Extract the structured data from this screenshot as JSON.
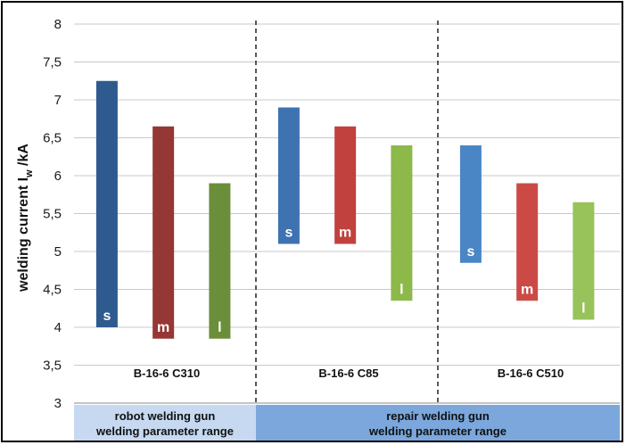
{
  "chart_data": {
    "type": "bar",
    "subtype": "floating-range",
    "ylabel_main": "welding current I",
    "ylabel_sub": "w",
    "ylabel_unit": " /kA",
    "ylim": [
      3,
      8
    ],
    "yticks": [
      "3",
      "3,5",
      "4",
      "4,5",
      "5",
      "5,5",
      "6",
      "6,5",
      "7",
      "7,5",
      "8"
    ],
    "grid": true,
    "groups": [
      {
        "name": "B-16-6  C310",
        "bars": [
          {
            "label": "s",
            "low": 4.0,
            "high": 7.25,
            "color": "#2f5a8f"
          },
          {
            "label": "m",
            "low": 3.85,
            "high": 6.65,
            "color": "#953734"
          },
          {
            "label": "l",
            "low": 3.85,
            "high": 5.9,
            "color": "#6b8e3a"
          }
        ]
      },
      {
        "name": "B-16-6  C85",
        "bars": [
          {
            "label": "s",
            "low": 5.1,
            "high": 6.9,
            "color": "#3e72b0"
          },
          {
            "label": "m",
            "low": 5.1,
            "high": 6.65,
            "color": "#c0413d"
          },
          {
            "label": "l",
            "low": 4.35,
            "high": 6.4,
            "color": "#8db94a"
          }
        ]
      },
      {
        "name": "B-16-6  C510",
        "bars": [
          {
            "label": "s",
            "low": 4.85,
            "high": 6.4,
            "color": "#4a86c5"
          },
          {
            "label": "m",
            "low": 4.35,
            "high": 5.9,
            "color": "#cc4a46"
          },
          {
            "label": "l",
            "low": 4.1,
            "high": 5.65,
            "color": "#98c25a"
          }
        ]
      }
    ],
    "bands": [
      {
        "line1": "robot welding gun",
        "line2": "welding parameter range",
        "color": "#c6d9f1"
      },
      {
        "line1": "repair welding gun",
        "line2": "welding parameter range",
        "color": "#7ba7dc"
      }
    ]
  }
}
